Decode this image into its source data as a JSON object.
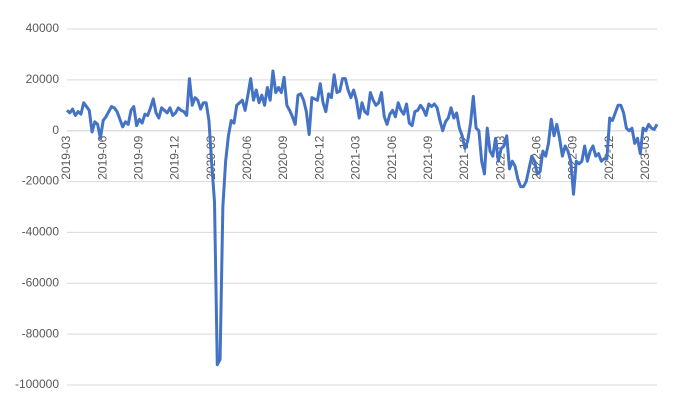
{
  "chart_data": {
    "type": "line",
    "categories": [
      "2019-03",
      null,
      null,
      null,
      null,
      null,
      null,
      null,
      null,
      null,
      null,
      null,
      null,
      "2019-06",
      null,
      null,
      null,
      null,
      null,
      null,
      null,
      null,
      null,
      null,
      null,
      null,
      "2019-09",
      null,
      null,
      null,
      null,
      null,
      null,
      null,
      null,
      null,
      null,
      null,
      null,
      "2019-12",
      null,
      null,
      null,
      null,
      null,
      null,
      null,
      null,
      null,
      null,
      null,
      null,
      "2020-03",
      null,
      null,
      null,
      null,
      null,
      null,
      null,
      null,
      null,
      null,
      null,
      null,
      "2020-06",
      null,
      null,
      null,
      null,
      null,
      null,
      null,
      null,
      null,
      null,
      null,
      null,
      "2020-09",
      null,
      null,
      null,
      null,
      null,
      null,
      null,
      null,
      null,
      null,
      null,
      null,
      "2020-12",
      null,
      null,
      null,
      null,
      null,
      null,
      null,
      null,
      null,
      null,
      null,
      null,
      "2021-03",
      null,
      null,
      null,
      null,
      null,
      null,
      null,
      null,
      null,
      null,
      null,
      null,
      "2021-06",
      null,
      null,
      null,
      null,
      null,
      null,
      null,
      null,
      null,
      null,
      null,
      null,
      "2021-09",
      null,
      null,
      null,
      null,
      null,
      null,
      null,
      null,
      null,
      null,
      null,
      null,
      "2021-12",
      null,
      null,
      null,
      null,
      null,
      null,
      null,
      null,
      null,
      null,
      null,
      null,
      "2022-03",
      null,
      null,
      null,
      null,
      null,
      null,
      null,
      null,
      null,
      null,
      null,
      null,
      "2022-06",
      null,
      null,
      null,
      null,
      null,
      null,
      null,
      null,
      null,
      null,
      null,
      null,
      "2022-09",
      null,
      null,
      null,
      null,
      null,
      null,
      null,
      null,
      null,
      null,
      null,
      null,
      "2022-12",
      null,
      null,
      null,
      null,
      null,
      null,
      null,
      null,
      null,
      null,
      null,
      null,
      "2023-03",
      null,
      null,
      null,
      null
    ],
    "values": [
      8000,
      7000,
      8500,
      6000,
      7500,
      6500,
      11000,
      9500,
      8000,
      -500,
      3500,
      2500,
      -3000,
      4000,
      5500,
      7500,
      9500,
      9000,
      7500,
      4500,
      1500,
      3500,
      2500,
      8000,
      9500,
      2000,
      4500,
      3000,
      6500,
      6000,
      9000,
      12500,
      7000,
      5000,
      9000,
      8000,
      7000,
      9000,
      6000,
      7000,
      9000,
      8000,
      7500,
      6000,
      20500,
      10000,
      13000,
      12000,
      8500,
      11000,
      11000,
      4000,
      -13000,
      -28000,
      -92000,
      -90000,
      -30000,
      -12000,
      -2000,
      4000,
      3000,
      10000,
      11000,
      12000,
      8000,
      14000,
      20500,
      12000,
      16000,
      11000,
      14000,
      10000,
      17000,
      12000,
      23500,
      15000,
      17000,
      15000,
      21000,
      10000,
      8000,
      5500,
      2500,
      14000,
      14500,
      12000,
      7500,
      -1500,
      13000,
      12500,
      12000,
      18500,
      11000,
      7500,
      14500,
      13000,
      22000,
      15000,
      15500,
      20500,
      20500,
      16000,
      13000,
      16000,
      12000,
      5000,
      11000,
      7500,
      6500,
      15000,
      12000,
      10000,
      11000,
      15000,
      5500,
      2500,
      6500,
      8000,
      5500,
      11000,
      8000,
      6500,
      10500,
      3000,
      2000,
      7500,
      8000,
      10000,
      8500,
      6000,
      10500,
      9500,
      10500,
      9000,
      4000,
      0,
      3500,
      5000,
      9000,
      5000,
      7000,
      1000,
      -2000,
      -7000,
      -4000,
      3000,
      13500,
      1000,
      0,
      -12000,
      -17000,
      1000,
      -8000,
      -10000,
      -3000,
      -12000,
      -7000,
      -6000,
      -2000,
      -15000,
      -12000,
      -14000,
      -19000,
      -22000,
      -22000,
      -20000,
      -15000,
      -10000,
      -12000,
      -17000,
      -16000,
      -8000,
      -10000,
      -5000,
      4500,
      -2000,
      2500,
      -3000,
      -10000,
      -6000,
      -8000,
      -12000,
      -25000,
      -12000,
      -13000,
      -12000,
      -6000,
      -12000,
      -8000,
      -6000,
      -10000,
      -9000,
      -12000,
      -11000,
      -11000,
      5000,
      4000,
      7000,
      10000,
      10000,
      7000,
      1000,
      0,
      1000,
      -5000,
      -3000,
      -9000,
      1000,
      0,
      2500,
      1000,
      500,
      2500
    ],
    "color": "#4472c4",
    "ylim": [
      -100000,
      40000
    ],
    "yticks": [
      -100000,
      -80000,
      -60000,
      -40000,
      -20000,
      0,
      20000,
      40000
    ],
    "grid": true
  }
}
